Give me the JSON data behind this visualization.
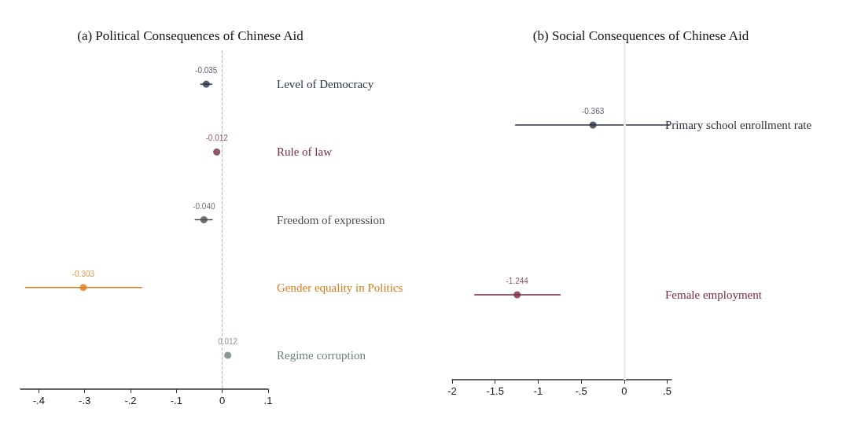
{
  "chart_data": [
    {
      "type": "scatter",
      "title": "(a) Political Consequences of Chinese Aid",
      "orientation": "horizontal",
      "categories": [
        "Level of Democracy",
        "Rule of law",
        "Freedom of expression",
        "Gender equality in Politics",
        "Regime corruption"
      ],
      "values": [
        -0.035,
        -0.012,
        -0.04,
        -0.303,
        0.012
      ],
      "errors": [
        [
          -0.048,
          -0.022
        ],
        null,
        [
          -0.06,
          -0.021
        ],
        [
          -0.43,
          -0.175
        ],
        null
      ],
      "value_labels": [
        "-0.035",
        "-0.012",
        "-0.040",
        "-0.303",
        "0.012"
      ],
      "colors": [
        "#2b3548",
        "#7a2a3e",
        "#4a4f4c",
        "#e07b1a",
        "#6b7f7a"
      ],
      "xlim": [
        -0.44,
        0.1
      ],
      "xticks": [
        {
          "value": -0.4,
          "label": "-.4"
        },
        {
          "value": -0.3,
          "label": "-.3"
        },
        {
          "value": -0.2,
          "label": "-.2"
        },
        {
          "value": -0.1,
          "label": "-.1"
        },
        0,
        {
          "value": 0.1,
          "label": ".1"
        }
      ],
      "ref_lines": [
        {
          "axis": "x",
          "value": 0,
          "color": "#bbbbbb",
          "line_style": "dashed"
        }
      ]
    },
    {
      "type": "scatter",
      "title": "(b) Social Consequences of Chinese Aid",
      "orientation": "horizontal",
      "categories": [
        "Primary school enrollment rate",
        "Female employment"
      ],
      "values": [
        -0.363,
        -1.244
      ],
      "errors": [
        [
          -1.268,
          0.529
        ],
        [
          -1.743,
          -0.739
        ]
      ],
      "value_labels": [
        "-0.363",
        "-1.244"
      ],
      "colors": [
        "#2b3440",
        "#7a2a3e"
      ],
      "xlim": [
        -2,
        0.55
      ],
      "xticks": [
        -2,
        {
          "value": -1.5,
          "label": "-1.5"
        },
        -1,
        {
          "value": -0.5,
          "label": "-.5"
        },
        0,
        {
          "value": 0.5,
          "label": ".5"
        }
      ],
      "ref_lines": [
        {
          "axis": "x",
          "value": 0,
          "color": "#eeeeee",
          "line_style": "solid"
        }
      ]
    }
  ]
}
